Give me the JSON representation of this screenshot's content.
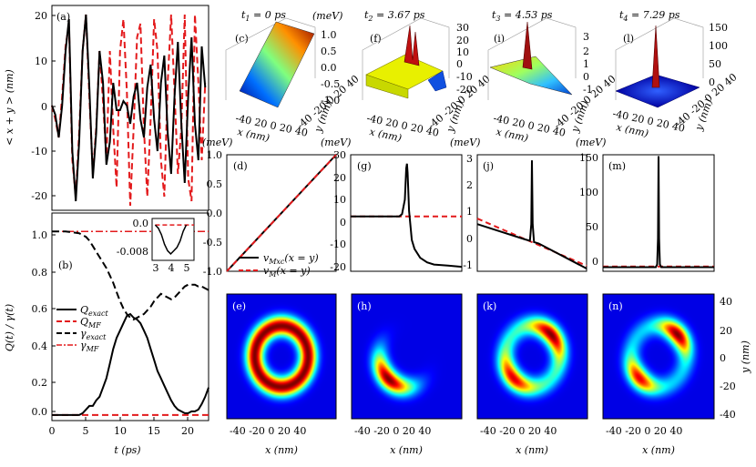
{
  "chart_data": [
    {
      "id": "a",
      "type": "line",
      "label": "(a)",
      "ylabel": "< x + y > (nm)",
      "xlim": [
        0,
        23
      ],
      "ylim": [
        -23,
        22
      ],
      "yticks": [
        -20,
        -10,
        0,
        10,
        20
      ],
      "series": [
        {
          "name": "exact",
          "color": "#000000",
          "style": "solid",
          "x": [
            0,
            0.5,
            1,
            1.5,
            2,
            2.5,
            3,
            3.5,
            4,
            4.5,
            5,
            5.5,
            6,
            6.5,
            7,
            7.5,
            8,
            8.5,
            9,
            9.5,
            10,
            10.5,
            11,
            11.5,
            12,
            12.5,
            13,
            13.5,
            14,
            14.5,
            15,
            15.5,
            16,
            16.5,
            17,
            17.5,
            18,
            18.5,
            19,
            19.5,
            20,
            20.5,
            21,
            21.5,
            22,
            22.5
          ],
          "y": [
            0,
            -2,
            -7,
            0,
            12,
            19,
            -10,
            -21,
            -8,
            12,
            20,
            4,
            -16,
            -6,
            12,
            5,
            -13,
            -8,
            5,
            -1,
            -1,
            1,
            0,
            -4,
            2,
            5,
            -3,
            -7,
            4,
            9,
            -3,
            -10,
            5,
            11,
            -6,
            -15,
            2,
            14,
            -4,
            -17,
            2,
            15,
            -4,
            -12,
            13,
            4
          ]
        },
        {
          "name": "mean-field",
          "color": "#e31a1c",
          "style": "dashed",
          "x": [
            0,
            0.5,
            1,
            1.5,
            2,
            2.5,
            3,
            3.5,
            4,
            4.5,
            5,
            5.5,
            6,
            6.5,
            7,
            7.5,
            8,
            8.5,
            9,
            9.5,
            10,
            10.5,
            11,
            11.5,
            12,
            12.5,
            13,
            13.5,
            14,
            14.5,
            15,
            15.5,
            16,
            16.5,
            17,
            17.5,
            18,
            18.5,
            19,
            19.5,
            20,
            20.5,
            21,
            21.5,
            22,
            22.5
          ],
          "y": [
            0,
            -3,
            -7,
            2,
            13,
            18,
            -12,
            -20,
            -6,
            12,
            20,
            2,
            -15,
            -5,
            12,
            1,
            -12,
            12,
            -5,
            -18,
            12,
            19,
            3,
            -22,
            -5,
            15,
            18,
            -5,
            -20,
            -3,
            19,
            12,
            -12,
            -20,
            5,
            20,
            3,
            -15,
            -5,
            20,
            -16,
            -21,
            20,
            5,
            -12,
            5
          ]
        }
      ]
    },
    {
      "id": "b",
      "type": "line",
      "label": "(b)",
      "xlabel": "t (ps)",
      "ylabel": "Q(t) / γ(t)",
      "xlim": [
        0,
        23
      ],
      "ylim": [
        -0.03,
        1.1
      ],
      "xticks": [
        0,
        5,
        10,
        15,
        20
      ],
      "yticks": [
        0.0,
        0.2,
        0.4,
        0.6,
        0.8,
        1.0
      ],
      "series": [
        {
          "name": "Q_exact",
          "color": "#000000",
          "style": "solid",
          "x": [
            0,
            2,
            4,
            4.5,
            5,
            5.5,
            6,
            6.5,
            7,
            7.5,
            8,
            8.5,
            9,
            9.5,
            10,
            10.5,
            11,
            11.5,
            12,
            12.5,
            13,
            13.5,
            14,
            14.5,
            15,
            15.5,
            16,
            16.5,
            17,
            17.5,
            18,
            18.5,
            19,
            19.5,
            20,
            20.5,
            21,
            21.5,
            22,
            22.5,
            23
          ],
          "y": [
            0,
            0,
            0,
            0.01,
            0.03,
            0.05,
            0.05,
            0.08,
            0.1,
            0.15,
            0.2,
            0.28,
            0.36,
            0.42,
            0.46,
            0.5,
            0.54,
            0.55,
            0.53,
            0.52,
            0.5,
            0.46,
            0.42,
            0.36,
            0.3,
            0.24,
            0.2,
            0.16,
            0.12,
            0.08,
            0.05,
            0.03,
            0.02,
            0.01,
            0.01,
            0.02,
            0.02,
            0.03,
            0.06,
            0.1,
            0.15
          ]
        },
        {
          "name": "Q_MF",
          "color": "#e31a1c",
          "style": "dashed",
          "x": [
            0,
            23
          ],
          "y": [
            0,
            0
          ]
        },
        {
          "name": "gamma_exact",
          "color": "#000000",
          "style": "dashed",
          "x": [
            0,
            2,
            3,
            4,
            4.5,
            5,
            5.5,
            6,
            6.5,
            7,
            7.5,
            8,
            8.5,
            9,
            9.5,
            10,
            10.5,
            11,
            11.5,
            12,
            12.5,
            13,
            13.5,
            14,
            14.5,
            15,
            15.5,
            16,
            16.5,
            17,
            17.5,
            18,
            18.5,
            19,
            19.5,
            20,
            20.5,
            21,
            21.5,
            22,
            22.5,
            23
          ],
          "y": [
            1,
            1,
            0.995,
            0.99,
            0.98,
            0.97,
            0.95,
            0.92,
            0.89,
            0.86,
            0.83,
            0.8,
            0.76,
            0.72,
            0.67,
            0.62,
            0.58,
            0.55,
            0.53,
            0.52,
            0.53,
            0.54,
            0.55,
            0.57,
            0.59,
            0.62,
            0.64,
            0.66,
            0.65,
            0.64,
            0.63,
            0.64,
            0.66,
            0.68,
            0.7,
            0.71,
            0.71,
            0.71,
            0.7,
            0.7,
            0.69,
            0.68
          ]
        },
        {
          "name": "gamma_MF",
          "color": "#e31a1c",
          "style": "dashdot",
          "x": [
            0,
            23
          ],
          "y": [
            1,
            1
          ]
        }
      ],
      "legend": {
        "placement": "left",
        "entries": [
          "Q_exact",
          "Q_MF",
          "γ_exact",
          "γ_MF"
        ]
      },
      "inset": {
        "xlim": [
          2.8,
          5.5
        ],
        "ylim": [
          -0.011,
          0.002
        ],
        "xticks": [
          3,
          4,
          5
        ],
        "yticks": [
          0.0,
          -0.008
        ],
        "series": [
          {
            "x": [
              3,
              3.2,
              3.4,
              3.6,
              3.8,
              4.0,
              4.2,
              4.4,
              4.6,
              4.8,
              5.0
            ],
            "y": [
              0,
              -0.001,
              -0.003,
              -0.006,
              -0.008,
              -0.009,
              -0.008,
              -0.007,
              -0.005,
              -0.002,
              0
            ],
            "color": "#000000",
            "style": "solid"
          },
          {
            "x": [
              3,
              5.5
            ],
            "y": [
              0,
              0
            ],
            "color": "#e31a1c",
            "style": "dashed"
          }
        ]
      }
    },
    {
      "id": "c",
      "type": "surface3d",
      "label": "(c)",
      "title": "t1 = 0 ps",
      "unit": "(meV)",
      "zticks": [
        1.0,
        0.5,
        0.0,
        -0.5,
        -1.0
      ],
      "xticks": [
        -40,
        -20,
        0,
        20,
        40
      ],
      "yticks": [
        -40,
        -20,
        0,
        20,
        40
      ],
      "xlabel": "x (nm)",
      "ylabel": "y (nm)"
    },
    {
      "id": "f",
      "type": "surface3d",
      "label": "(f)",
      "title": "t2 = 3.67 ps",
      "zticks": [
        30,
        20,
        10,
        0,
        -10,
        -20
      ]
    },
    {
      "id": "i",
      "type": "surface3d",
      "label": "(i)",
      "title": "t3 = 4.53 ps",
      "zticks": [
        3,
        2,
        1,
        0,
        -1
      ]
    },
    {
      "id": "l",
      "type": "surface3d",
      "label": "(l)",
      "title": "t4 = 7.29 ps",
      "zticks": [
        150,
        100,
        50,
        0
      ]
    },
    {
      "id": "d",
      "type": "line",
      "label": "(d)",
      "unit": "(meV)",
      "ylim": [
        -1.0,
        1.0
      ],
      "yticks": [
        -1.0,
        -0.5,
        0.0,
        0.5,
        1.0
      ],
      "legend": {
        "placement": "bottom-right",
        "entries": [
          "v_Mxc(x = y)",
          "v_M(x = y)"
        ]
      },
      "series": [
        {
          "name": "v_Mxc",
          "x": [
            -40,
            40
          ],
          "y": [
            -1,
            1
          ],
          "color": "#000000",
          "style": "solid"
        },
        {
          "name": "v_M",
          "x": [
            -40,
            40
          ],
          "y": [
            -1,
            1
          ],
          "color": "#e31a1c",
          "style": "dashed"
        }
      ]
    },
    {
      "id": "g",
      "type": "line",
      "label": "(g)",
      "unit": "(meV)",
      "ylim": [
        -22,
        30
      ],
      "yticks": [
        -20,
        -10,
        0,
        10,
        20,
        30
      ],
      "series": [
        {
          "name": "v_Mxc",
          "x": [
            -40,
            -10,
            -5,
            -3,
            -1,
            0,
            0.5,
            1,
            2,
            4,
            6,
            10,
            15,
            20,
            30,
            40
          ],
          "y": [
            2.5,
            2.5,
            2.5,
            3.5,
            10,
            24,
            26,
            22,
            5,
            -8,
            -12,
            -16,
            -18,
            -19,
            -19.5,
            -20
          ],
          "color": "#000000",
          "style": "solid"
        },
        {
          "name": "v_M",
          "x": [
            -40,
            40
          ],
          "y": [
            2.5,
            2.5
          ],
          "color": "#e31a1c",
          "style": "dashed"
        }
      ]
    },
    {
      "id": "j",
      "type": "line",
      "label": "(j)",
      "unit": "(meV)",
      "ylim": [
        -1.1,
        3.1
      ],
      "yticks": [
        -1,
        0,
        1,
        2,
        3
      ],
      "series": [
        {
          "name": "v_Mxc",
          "x": [
            -40,
            -5,
            -1.5,
            -0.5,
            0,
            0.5,
            1.5,
            5,
            40
          ],
          "y": [
            0.6,
            0.05,
            0,
            0.6,
            2.9,
            0.6,
            -0.05,
            -0.1,
            -1
          ],
          "color": "#000000",
          "style": "solid"
        },
        {
          "name": "v_M",
          "x": [
            -40,
            40
          ],
          "y": [
            0.8,
            -0.9
          ],
          "color": "#e31a1c",
          "style": "dashed"
        }
      ]
    },
    {
      "id": "m",
      "type": "line",
      "label": "(m)",
      "unit": "(meV)",
      "ylim": [
        -8,
        162
      ],
      "yticks": [
        0,
        50,
        100,
        150
      ],
      "series": [
        {
          "name": "v_Mxc",
          "x": [
            -40,
            -2,
            -1,
            -0.4,
            0,
            0.4,
            1,
            2,
            40
          ],
          "y": [
            -2,
            -2,
            2,
            40,
            160,
            40,
            2,
            -2,
            -2
          ],
          "color": "#000000",
          "style": "solid"
        },
        {
          "name": "v_M",
          "x": [
            -40,
            40
          ],
          "y": [
            -1,
            -1
          ],
          "color": "#e31a1c",
          "style": "dashed"
        }
      ]
    },
    {
      "id": "e",
      "type": "heatmap",
      "label": "(e)",
      "shape": "ring",
      "xlim": [
        -45,
        45
      ],
      "ylim": [
        -45,
        45
      ],
      "xlabel": "x (nm)",
      "xticks": [
        -40,
        -20,
        0,
        20,
        40
      ]
    },
    {
      "id": "h",
      "type": "heatmap",
      "label": "(h)",
      "shape": "crescent",
      "xlim": [
        -45,
        45
      ],
      "ylim": [
        -45,
        45
      ],
      "xlabel": "x (nm)",
      "xticks": [
        -40,
        -20,
        0,
        20,
        40
      ]
    },
    {
      "id": "k",
      "type": "heatmap",
      "label": "(k)",
      "shape": "two-lobes",
      "xlim": [
        -45,
        45
      ],
      "ylim": [
        -45,
        45
      ],
      "xlabel": "x (nm)",
      "xticks": [
        -40,
        -20,
        0,
        20,
        40
      ]
    },
    {
      "id": "n",
      "type": "heatmap",
      "label": "(n)",
      "shape": "two-lobes-strong",
      "xlim": [
        -45,
        45
      ],
      "ylim": [
        -45,
        45
      ],
      "xlabel": "x (nm)",
      "ylabel": "y (nm)",
      "xticks": [
        -40,
        -20,
        0,
        20,
        40
      ],
      "yticks": [
        40,
        20,
        0,
        -20,
        -40
      ]
    }
  ]
}
